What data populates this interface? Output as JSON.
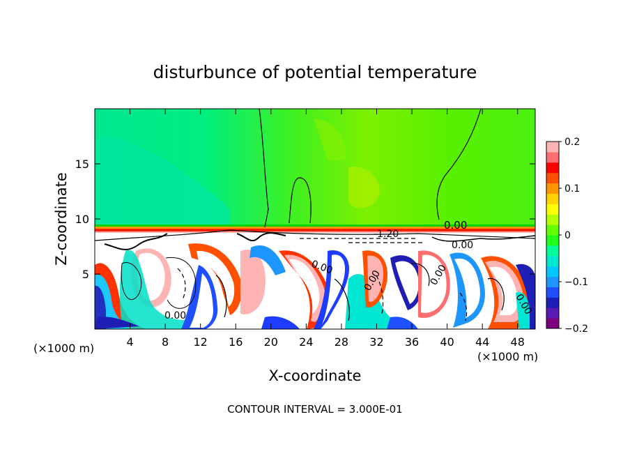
{
  "chart_data": {
    "type": "heatmap",
    "title": "disturbunce of potential temperature",
    "xlabel": "X-coordinate",
    "ylabel": "Z-coordinate",
    "x_unit": "(×1000 m)",
    "y_unit": "(×1000 m)",
    "xlim": [
      0,
      50
    ],
    "ylim": [
      0,
      20
    ],
    "x_ticks": [
      4,
      8,
      12,
      16,
      20,
      24,
      28,
      32,
      36,
      40,
      44,
      48
    ],
    "y_ticks": [
      5,
      10,
      15
    ],
    "colorbar": {
      "min": -0.2,
      "max": 0.2,
      "ticks": [
        0.2,
        0.1,
        0,
        -0.1,
        -0.2
      ],
      "tick_labels": [
        "0.2",
        "0.1",
        "0",
        "−0.1",
        "−0.2"
      ],
      "colors": [
        "#800080",
        "#5a1ab4",
        "#1e1eb4",
        "#1e50ff",
        "#1e96ff",
        "#00c8ff",
        "#00e6d2",
        "#00ff96",
        "#1eff1e",
        "#64ff00",
        "#b4ff00",
        "#ffff00",
        "#ffd200",
        "#ff9600",
        "#ff5000",
        "#ff0000",
        "#ff6e6e",
        "#ffb4b4"
      ]
    },
    "contour_labels": [
      "0.00",
      "0.00",
      "0.00",
      "0.00",
      "0.00",
      "0.00",
      "0.00",
      "-1.20"
    ],
    "contour_interval_text": "CONTOUR INTERVAL = 3.000E-01"
  }
}
